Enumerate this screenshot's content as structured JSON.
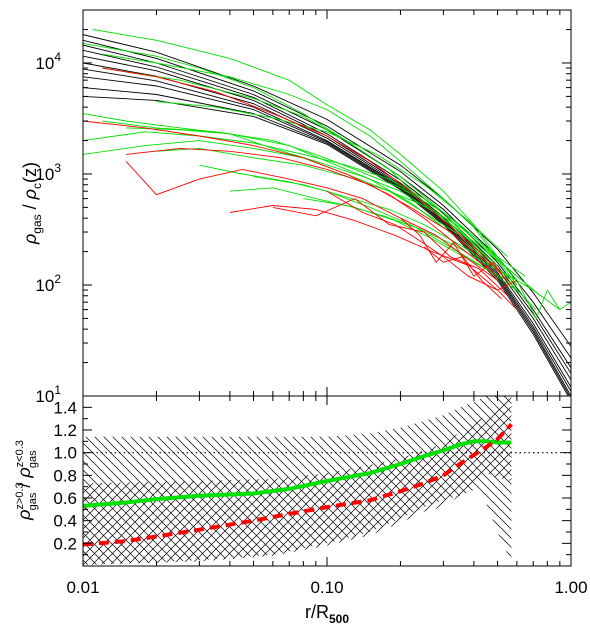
{
  "chart_data": [
    {
      "type": "line",
      "panel": "top",
      "x_scale": "log",
      "y_scale": "log",
      "xlim": [
        0.01,
        1.0
      ],
      "ylim": [
        10,
        30000
      ],
      "grid": false,
      "ylabel": {
        "main": "ρ",
        "sub": "gas",
        "sep": " / ",
        "main2": "ρ",
        "sub2": "c",
        "tail": "(z)"
      },
      "yticks": [
        {
          "value": 10,
          "base": "10",
          "exp": "1"
        },
        {
          "value": 100,
          "base": "10",
          "exp": "2"
        },
        {
          "value": 1000,
          "base": "10",
          "exp": "3"
        },
        {
          "value": 10000,
          "base": "10",
          "exp": "4"
        }
      ],
      "colors": {
        "low_z": "#00e000",
        "high_z": "#ff0000",
        "model": "#000000"
      },
      "series": [
        {
          "group": "model",
          "x": [
            0.01,
            0.02,
            0.05,
            0.1,
            0.2,
            0.3,
            0.5,
            0.7,
            1.0
          ],
          "y": [
            18000,
            12500,
            6200,
            3100,
            1200,
            600,
            210,
            85,
            28
          ]
        },
        {
          "group": "model",
          "x": [
            0.01,
            0.02,
            0.05,
            0.1,
            0.2,
            0.3,
            0.5,
            0.7,
            1.0
          ],
          "y": [
            16000,
            11000,
            5600,
            2700,
            1050,
            520,
            180,
            70,
            22
          ]
        },
        {
          "group": "model",
          "x": [
            0.01,
            0.02,
            0.05,
            0.1,
            0.2,
            0.3,
            0.5,
            0.7,
            1.0
          ],
          "y": [
            14500,
            10000,
            5200,
            2500,
            950,
            480,
            160,
            60,
            18
          ]
        },
        {
          "group": "model",
          "x": [
            0.01,
            0.02,
            0.05,
            0.1,
            0.2,
            0.3,
            0.5,
            0.7,
            1.0
          ],
          "y": [
            13000,
            9200,
            4900,
            2300,
            880,
            440,
            150,
            55,
            16
          ]
        },
        {
          "group": "model",
          "x": [
            0.01,
            0.02,
            0.05,
            0.1,
            0.2,
            0.3,
            0.5,
            0.7,
            1.0
          ],
          "y": [
            11500,
            8500,
            4600,
            2200,
            830,
            410,
            140,
            50,
            14
          ]
        },
        {
          "group": "model",
          "x": [
            0.01,
            0.02,
            0.05,
            0.1,
            0.2,
            0.3,
            0.5,
            0.7,
            1.0
          ],
          "y": [
            10000,
            7600,
            4300,
            2100,
            800,
            395,
            130,
            45,
            12
          ]
        },
        {
          "group": "model",
          "x": [
            0.01,
            0.02,
            0.05,
            0.1,
            0.2,
            0.3,
            0.5,
            0.7,
            1.0
          ],
          "y": [
            8800,
            6900,
            4000,
            2000,
            780,
            380,
            125,
            42,
            11
          ]
        },
        {
          "group": "model",
          "x": [
            0.01,
            0.02,
            0.05,
            0.1,
            0.2,
            0.3,
            0.5,
            0.7,
            1.0
          ],
          "y": [
            7500,
            6200,
            3800,
            1950,
            760,
            370,
            120,
            40,
            10
          ]
        },
        {
          "group": "model",
          "x": [
            0.01,
            0.02,
            0.05,
            0.1,
            0.2,
            0.3,
            0.5,
            0.7,
            1.0
          ],
          "y": [
            6000,
            5200,
            3500,
            1900,
            740,
            360,
            115,
            38,
            9.5
          ]
        },
        {
          "group": "model",
          "x": [
            0.01,
            0.02,
            0.05,
            0.1,
            0.2,
            0.3,
            0.5,
            0.7,
            1.0
          ],
          "y": [
            5000,
            4600,
            3300,
            1850,
            720,
            350,
            110,
            36,
            9
          ]
        },
        {
          "group": "low_z",
          "x": [
            0.011,
            0.02,
            0.04,
            0.07,
            0.1,
            0.15,
            0.2,
            0.3,
            0.4,
            0.5,
            0.6
          ],
          "y": [
            20000,
            16000,
            11000,
            7000,
            4200,
            2500,
            1500,
            700,
            350,
            180,
            110
          ]
        },
        {
          "group": "low_z",
          "x": [
            0.012,
            0.02,
            0.04,
            0.07,
            0.1,
            0.15,
            0.2,
            0.3,
            0.4,
            0.5,
            0.6
          ],
          "y": [
            12000,
            10000,
            7500,
            5200,
            3800,
            2200,
            1300,
            600,
            330,
            170,
            100
          ]
        },
        {
          "group": "low_z",
          "x": [
            0.01,
            0.02,
            0.03,
            0.05,
            0.08,
            0.12,
            0.18,
            0.25,
            0.35,
            0.5
          ],
          "y": [
            15000,
            11500,
            9000,
            6000,
            3500,
            2000,
            1100,
            550,
            300,
            150
          ]
        },
        {
          "group": "low_z",
          "x": [
            0.012,
            0.025,
            0.05,
            0.08,
            0.12,
            0.2,
            0.3,
            0.45
          ],
          "y": [
            9000,
            7000,
            4800,
            3300,
            2000,
            950,
            450,
            180
          ]
        },
        {
          "group": "low_z",
          "x": [
            0.01,
            0.018,
            0.03,
            0.05,
            0.08,
            0.12,
            0.18,
            0.25,
            0.35,
            0.5,
            0.65
          ],
          "y": [
            2000,
            2400,
            2200,
            1900,
            1500,
            1200,
            900,
            600,
            350,
            180,
            120
          ]
        },
        {
          "group": "low_z",
          "x": [
            0.01,
            0.018,
            0.03,
            0.05,
            0.08,
            0.12,
            0.18,
            0.25,
            0.35,
            0.5
          ],
          "y": [
            1500,
            1800,
            2000,
            1700,
            1400,
            1000,
            700,
            450,
            280,
            150
          ]
        },
        {
          "group": "low_z",
          "x": [
            0.01,
            0.015,
            0.025,
            0.04,
            0.07,
            0.1,
            0.15,
            0.22,
            0.3,
            0.45,
            0.6
          ],
          "y": [
            3500,
            3000,
            2600,
            2300,
            1800,
            1300,
            900,
            550,
            330,
            170,
            100
          ]
        },
        {
          "group": "low_z",
          "x": [
            0.012,
            0.02,
            0.035,
            0.06,
            0.09,
            0.13,
            0.2,
            0.3,
            0.42,
            0.55
          ],
          "y": [
            3000,
            2600,
            2400,
            2000,
            1500,
            1100,
            750,
            450,
            250,
            140
          ]
        },
        {
          "group": "low_z",
          "x": [
            0.015,
            0.025,
            0.04,
            0.06,
            0.09,
            0.14,
            0.2,
            0.3,
            0.45,
            0.6,
            0.75
          ],
          "y": [
            2600,
            2500,
            2300,
            1700,
            1300,
            950,
            700,
            400,
            200,
            120,
            80
          ]
        },
        {
          "group": "low_z",
          "x": [
            0.02,
            0.03,
            0.05,
            0.08,
            0.12,
            0.18,
            0.26,
            0.36,
            0.5,
            0.7
          ],
          "y": [
            1600,
            1700,
            1400,
            1200,
            950,
            700,
            500,
            320,
            170,
            90
          ]
        },
        {
          "group": "low_z",
          "x": [
            0.04,
            0.06,
            0.09,
            0.13,
            0.19,
            0.27,
            0.38,
            0.55,
            0.72
          ],
          "y": [
            700,
            750,
            600,
            500,
            380,
            260,
            170,
            110,
            60
          ]
        },
        {
          "group": "low_z",
          "x": [
            0.05,
            0.08,
            0.12,
            0.18,
            0.25,
            0.35,
            0.5,
            0.7,
            0.9
          ],
          "y": [
            950,
            800,
            620,
            480,
            350,
            230,
            140,
            90,
            60
          ]
        },
        {
          "group": "low_z",
          "x": [
            0.03,
            0.045,
            0.07,
            0.1,
            0.15,
            0.22,
            0.32,
            0.45,
            0.62
          ],
          "y": [
            1200,
            1000,
            850,
            700,
            500,
            350,
            220,
            140,
            85
          ]
        },
        {
          "group": "low_z",
          "x": [
            0.08,
            0.12,
            0.17,
            0.24,
            0.33,
            0.46,
            0.6,
            0.72,
            0.8,
            0.9,
            1.0
          ],
          "y": [
            600,
            520,
            420,
            320,
            230,
            150,
            110,
            50,
            90,
            60,
            70
          ]
        },
        {
          "group": "low_z",
          "x": [
            0.02,
            0.035,
            0.06,
            0.1,
            0.16,
            0.25,
            0.38,
            0.55
          ],
          "y": [
            4500,
            4000,
            3200,
            2400,
            1500,
            800,
            380,
            180
          ]
        },
        {
          "group": "high_z",
          "x": [
            0.012,
            0.02,
            0.035,
            0.06,
            0.1,
            0.15,
            0.22,
            0.3,
            0.42,
            0.55
          ],
          "y": [
            9000,
            7500,
            5500,
            3500,
            2200,
            1300,
            700,
            380,
            200,
            110
          ]
        },
        {
          "group": "high_z",
          "x": [
            0.01,
            0.018,
            0.03,
            0.05,
            0.08,
            0.12,
            0.18,
            0.25,
            0.35,
            0.5
          ],
          "y": [
            3000,
            2600,
            2200,
            1800,
            1400,
            1000,
            650,
            400,
            220,
            120
          ]
        },
        {
          "group": "high_z",
          "x": [
            0.015,
            0.025,
            0.04,
            0.065,
            0.1,
            0.15,
            0.22,
            0.32,
            0.45
          ],
          "y": [
            1500,
            1700,
            1600,
            1400,
            1100,
            800,
            500,
            300,
            160
          ]
        },
        {
          "group": "high_z",
          "x": [
            0.015,
            0.02,
            0.03,
            0.045,
            0.07,
            0.1,
            0.14,
            0.2,
            0.28,
            0.38,
            0.5
          ],
          "y": [
            1300,
            650,
            900,
            1100,
            900,
            750,
            600,
            400,
            280,
            170,
            110
          ]
        },
        {
          "group": "high_z",
          "x": [
            0.04,
            0.06,
            0.09,
            0.13,
            0.19,
            0.27,
            0.38,
            0.5,
            0.6
          ],
          "y": [
            450,
            520,
            480,
            380,
            280,
            200,
            150,
            90,
            110
          ]
        },
        {
          "group": "high_z",
          "x": [
            0.06,
            0.09,
            0.13,
            0.18,
            0.25,
            0.32,
            0.42,
            0.55
          ],
          "y": [
            500,
            420,
            600,
            350,
            300,
            180,
            140,
            80
          ]
        },
        {
          "group": "high_z",
          "x": [
            0.1,
            0.14,
            0.19,
            0.24,
            0.3,
            0.38,
            0.5,
            0.6
          ],
          "y": [
            700,
            450,
            350,
            250,
            180,
            120,
            90,
            60
          ]
        },
        {
          "group": "high_z",
          "x": [
            0.2,
            0.24,
            0.28,
            0.33,
            0.4,
            0.48,
            0.56
          ],
          "y": [
            400,
            280,
            160,
            240,
            120,
            160,
            100
          ]
        },
        {
          "group": "high_z",
          "x": [
            0.25,
            0.3,
            0.36,
            0.43,
            0.52
          ],
          "y": [
            220,
            160,
            180,
            110,
            75
          ]
        }
      ]
    },
    {
      "type": "line",
      "panel": "bottom",
      "x_scale": "log",
      "y_scale": "linear",
      "xlim": [
        0.01,
        1.0
      ],
      "ylim": [
        0.0,
        1.5
      ],
      "grid": false,
      "ylabel": {
        "main": "ρ",
        "sup": "z>0.3",
        "sub": "gas",
        "sep": " / ",
        "main2": "ρ",
        "sup2": "z<0.3",
        "sub2": "gas"
      },
      "xlabel": {
        "main": "r/R",
        "sub": "500"
      },
      "yticks": [
        0.2,
        0.4,
        0.6,
        0.8,
        1.0,
        1.2,
        1.4
      ],
      "ytick_labels": [
        "0.2",
        "0.4",
        "0.6",
        "0.8",
        "1.0",
        "1.2",
        "1.4"
      ],
      "xticks": [
        0.01,
        0.1,
        1.0
      ],
      "xtick_labels": [
        "0.01",
        "0.10",
        "1.00"
      ],
      "reference_line": {
        "y": 1.0,
        "style": "dotted"
      },
      "series": [
        {
          "name": "",
          "color": "#00e000",
          "style": "solid",
          "x": [
            0.01,
            0.015,
            0.02,
            0.03,
            0.05,
            0.07,
            0.1,
            0.15,
            0.2,
            0.25,
            0.3,
            0.35,
            0.4,
            0.45,
            0.5,
            0.57
          ],
          "y": [
            0.53,
            0.56,
            0.59,
            0.62,
            0.64,
            0.68,
            0.75,
            0.82,
            0.9,
            0.97,
            1.02,
            1.07,
            1.1,
            1.1,
            1.09,
            1.09
          ]
        },
        {
          "name": "",
          "color": "#ff0000",
          "style": "dashed",
          "x": [
            0.01,
            0.015,
            0.02,
            0.03,
            0.05,
            0.07,
            0.1,
            0.15,
            0.2,
            0.25,
            0.3,
            0.35,
            0.4,
            0.45,
            0.5,
            0.57
          ],
          "y": [
            0.19,
            0.22,
            0.26,
            0.32,
            0.4,
            0.46,
            0.52,
            0.58,
            0.66,
            0.73,
            0.8,
            0.9,
            0.98,
            1.05,
            1.12,
            1.25
          ]
        }
      ],
      "bands": [
        {
          "name": "",
          "hatch": "backslash",
          "x": [
            0.01,
            0.03,
            0.06,
            0.1,
            0.15,
            0.2,
            0.25,
            0.3,
            0.35,
            0.4,
            0.45,
            0.5,
            0.57
          ],
          "upper": [
            1.14,
            1.14,
            1.14,
            1.14,
            1.17,
            1.22,
            1.28,
            1.33,
            1.4,
            1.45,
            1.5,
            1.5,
            1.5
          ],
          "lower": [
            0.01,
            0.05,
            0.1,
            0.2,
            0.3,
            0.42,
            0.52,
            0.58,
            0.62,
            0.67,
            0.55,
            0.3,
            0.03
          ]
        },
        {
          "name": "",
          "hatch": "slash",
          "x": [
            0.01,
            0.03,
            0.06,
            0.1,
            0.15,
            0.2,
            0.25,
            0.3,
            0.35,
            0.4,
            0.45,
            0.5,
            0.57
          ],
          "upper": [
            0.73,
            0.75,
            0.77,
            0.82,
            0.89,
            0.95,
            1.02,
            1.08,
            1.18,
            1.26,
            1.33,
            1.4,
            1.5
          ],
          "lower": [
            0.01,
            0.04,
            0.09,
            0.18,
            0.27,
            0.38,
            0.48,
            0.52,
            0.62,
            0.75,
            0.82,
            0.78,
            0.75
          ]
        }
      ]
    }
  ]
}
